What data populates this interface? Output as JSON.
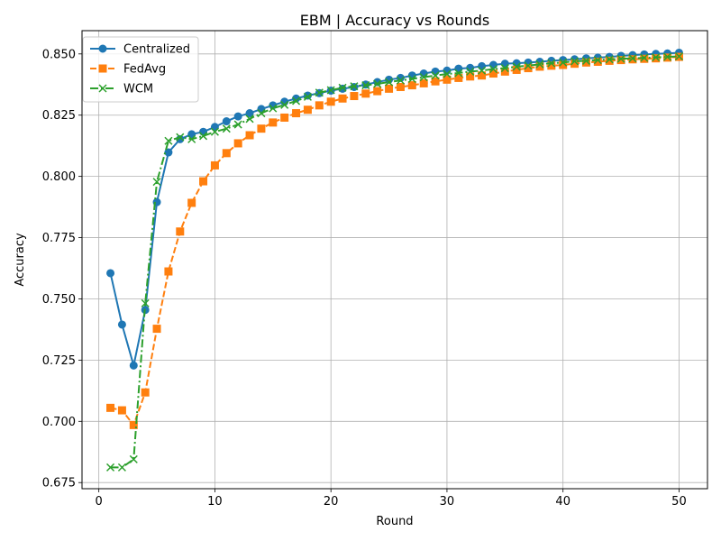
{
  "chart_data": {
    "type": "line",
    "title": "EBM | Accuracy vs Rounds",
    "xlabel": "Round",
    "ylabel": "Accuracy",
    "xlim": [
      -1.45,
      52.45
    ],
    "ylim": [
      0.6725,
      0.8595
    ],
    "xticks": [
      0,
      10,
      20,
      30,
      40,
      50
    ],
    "xtick_labels": [
      "0",
      "10",
      "20",
      "30",
      "40",
      "50"
    ],
    "yticks": [
      0.675,
      0.7,
      0.725,
      0.75,
      0.775,
      0.8,
      0.825,
      0.85
    ],
    "ytick_labels": [
      "0.675",
      "0.700",
      "0.725",
      "0.750",
      "0.775",
      "0.800",
      "0.825",
      "0.850"
    ],
    "grid": true,
    "legend_position": "top-left",
    "x": [
      1,
      2,
      3,
      4,
      5,
      6,
      7,
      8,
      9,
      10,
      11,
      12,
      13,
      14,
      15,
      16,
      17,
      18,
      19,
      20,
      21,
      22,
      23,
      24,
      25,
      26,
      27,
      28,
      29,
      30,
      31,
      32,
      33,
      34,
      35,
      36,
      37,
      38,
      39,
      40,
      41,
      42,
      43,
      44,
      45,
      46,
      47,
      48,
      49,
      50
    ],
    "series": [
      {
        "name": "Centralized",
        "color": "#1f77b4",
        "line_style": "solid",
        "marker": "circle",
        "values": [
          0.7605,
          0.7395,
          0.7228,
          0.7455,
          0.7895,
          0.8098,
          0.8152,
          0.8172,
          0.8182,
          0.8202,
          0.8225,
          0.8245,
          0.8258,
          0.8275,
          0.829,
          0.8305,
          0.8318,
          0.833,
          0.834,
          0.835,
          0.8358,
          0.8365,
          0.8375,
          0.8385,
          0.8395,
          0.8402,
          0.8412,
          0.842,
          0.8428,
          0.8432,
          0.844,
          0.8443,
          0.845,
          0.8455,
          0.846,
          0.8462,
          0.8465,
          0.8468,
          0.8472,
          0.8475,
          0.8478,
          0.8482,
          0.8485,
          0.8488,
          0.8492,
          0.8495,
          0.8498,
          0.85,
          0.8502,
          0.8505
        ]
      },
      {
        "name": "FedAvg",
        "color": "#ff7f0e",
        "line_style": "dashed",
        "marker": "square",
        "values": [
          0.7055,
          0.7045,
          0.6985,
          0.7118,
          0.7378,
          0.7612,
          0.7775,
          0.7892,
          0.798,
          0.8045,
          0.8095,
          0.8135,
          0.8168,
          0.8195,
          0.822,
          0.824,
          0.8258,
          0.8272,
          0.829,
          0.8305,
          0.8318,
          0.8328,
          0.8338,
          0.8348,
          0.8358,
          0.8365,
          0.8372,
          0.838,
          0.8388,
          0.8395,
          0.8402,
          0.8408,
          0.8412,
          0.842,
          0.8428,
          0.8435,
          0.8442,
          0.8448,
          0.8452,
          0.8455,
          0.846,
          0.8465,
          0.8468,
          0.8472,
          0.8475,
          0.8478,
          0.848,
          0.8482,
          0.8485,
          0.8488
        ]
      },
      {
        "name": "WCM",
        "color": "#2ca02c",
        "line_style": "dashdot",
        "marker": "x",
        "values": [
          0.6812,
          0.6812,
          0.6845,
          0.7482,
          0.7978,
          0.8145,
          0.816,
          0.8152,
          0.8165,
          0.8182,
          0.8195,
          0.8212,
          0.8235,
          0.8258,
          0.8278,
          0.8292,
          0.8308,
          0.8325,
          0.8342,
          0.8352,
          0.8362,
          0.8368,
          0.8372,
          0.8378,
          0.8385,
          0.8392,
          0.8398,
          0.8405,
          0.8412,
          0.8418,
          0.8422,
          0.8428,
          0.8432,
          0.8438,
          0.8442,
          0.8448,
          0.8452,
          0.8458,
          0.8462,
          0.8465,
          0.847,
          0.8472,
          0.8475,
          0.8478,
          0.848,
          0.8482,
          0.8484,
          0.8486,
          0.8488,
          0.849
        ]
      }
    ]
  }
}
